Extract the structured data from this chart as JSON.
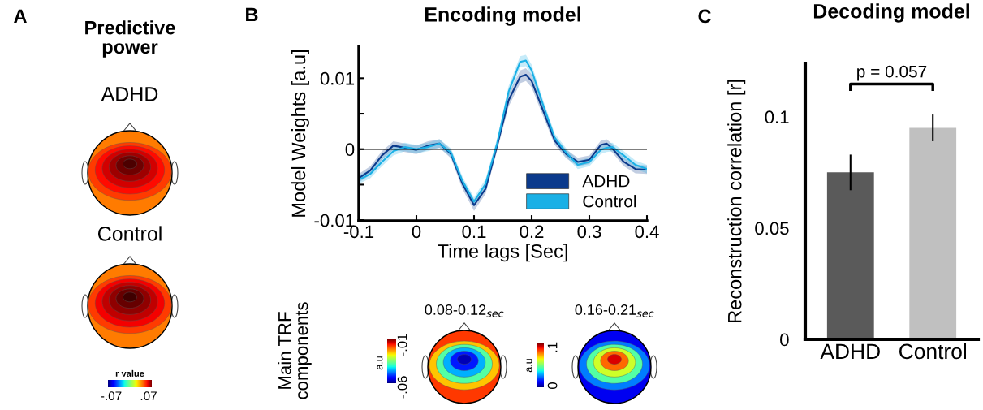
{
  "chart_data": [
    {
      "type": "other",
      "title": "Predictive\npower",
      "annotations": [
        "A",
        "ADHD",
        "Control",
        "r value",
        "-.07",
        ".07"
      ]
    },
    {
      "type": "line",
      "title": "Encoding model",
      "xlabel": "Time lags [Sec]",
      "ylabel": "Model Weights [a.u]",
      "annotations": [
        "B"
      ],
      "x": [
        -0.1,
        -0.08,
        -0.06,
        -0.04,
        -0.02,
        0,
        0.02,
        0.04,
        0.06,
        0.08,
        0.1,
        0.12,
        0.14,
        0.16,
        0.18,
        0.19,
        0.2,
        0.22,
        0.24,
        0.26,
        0.28,
        0.3,
        0.32,
        0.33,
        0.34,
        0.36,
        0.38,
        0.4
      ],
      "series": [
        {
          "name": "ADHD",
          "color": "#0b3a8c",
          "values": [
            -0.0041,
            -0.003,
            -0.0009,
            0.0005,
            0.0002,
            -0.0001,
            0.0005,
            0.0008,
            -0.0007,
            -0.0049,
            -0.0079,
            -0.0056,
            0.0005,
            0.0069,
            0.0102,
            0.0105,
            0.0096,
            0.0054,
            0.0012,
            -0.0007,
            -0.0018,
            -0.0015,
            0.0006,
            0.0008,
            0.0001,
            -0.0018,
            -0.0028,
            -0.0029
          ],
          "lower": [
            -0.0047,
            -0.0036,
            -0.0015,
            -0.0001,
            -0.0004,
            -0.0007,
            -0.0001,
            0.0002,
            -0.0013,
            -0.0056,
            -0.0087,
            -0.0063,
            -0.0002,
            0.006,
            0.0093,
            0.0096,
            0.0087,
            0.0046,
            0.0006,
            -0.0013,
            -0.0024,
            -0.0021,
            0.0,
            0.0002,
            -0.0005,
            -0.0024,
            -0.0034,
            -0.0035
          ],
          "upper": [
            -0.0035,
            -0.0024,
            -0.0003,
            0.0011,
            0.0008,
            0.0005,
            0.0011,
            0.0014,
            -0.0001,
            -0.0042,
            -0.0071,
            -0.0049,
            0.0012,
            0.0078,
            0.0111,
            0.0114,
            0.0105,
            0.0062,
            0.0018,
            -0.0001,
            -0.0012,
            -0.0009,
            0.0012,
            0.0014,
            0.0007,
            -0.0012,
            -0.0022,
            -0.0023
          ]
        },
        {
          "name": "Control",
          "color": "#1ab0e6",
          "values": [
            -0.0043,
            -0.0035,
            -0.0018,
            -0.0003,
            0.0003,
            0.0,
            0.0003,
            0.0008,
            -0.0005,
            -0.0045,
            -0.0074,
            -0.0049,
            0.0008,
            0.0081,
            0.0123,
            0.0125,
            0.0111,
            0.0062,
            0.0016,
            -0.0005,
            -0.0022,
            -0.0018,
            -0.0001,
            0.0002,
            0.0003,
            -0.0009,
            -0.0022,
            -0.0028
          ],
          "lower": [
            -0.0049,
            -0.0041,
            -0.0024,
            -0.0009,
            -0.0003,
            -0.0006,
            -0.0003,
            0.0002,
            -0.0011,
            -0.0051,
            -0.008,
            -0.0056,
            0.0001,
            0.0073,
            0.0115,
            0.0117,
            0.0103,
            0.0055,
            0.001,
            -0.0011,
            -0.0028,
            -0.0024,
            -0.0007,
            -0.0004,
            -0.0003,
            -0.0015,
            -0.0028,
            -0.0034
          ],
          "upper": [
            -0.0037,
            -0.0029,
            -0.0012,
            0.0003,
            0.0009,
            0.0006,
            0.0009,
            0.0014,
            0.0001,
            -0.0039,
            -0.0068,
            -0.0042,
            0.0015,
            0.0089,
            0.0131,
            0.0133,
            0.0119,
            0.0069,
            0.0022,
            0.0001,
            -0.0016,
            -0.0012,
            0.0005,
            0.0008,
            0.0009,
            -0.0003,
            -0.0016,
            -0.0022
          ]
        }
      ],
      "xlim": [
        -0.1,
        0.4
      ],
      "xticks": [
        -0.1,
        0,
        0.1,
        0.2,
        0.3,
        0.4
      ],
      "ylim": [
        -0.0101,
        0.0145
      ],
      "yticks": [
        {
          "value": -0.01,
          "label": "-0.01"
        },
        {
          "value": -0.005,
          "label": null
        },
        0,
        {
          "value": 0.005,
          "label": null
        },
        0.01
      ],
      "ref_lines": [
        {
          "axis": "y",
          "value": 0,
          "color": "#000000"
        }
      ],
      "legend": "bottom right",
      "grid": false
    },
    {
      "type": "other",
      "ylabel": "Main TRF\ncomponents",
      "annotations": [
        "0.08-0.12$_{sec}$",
        "0.16-0.21$_{sec}$",
        "a.u",
        "-.01",
        "-.06",
        "a.u",
        ".1",
        "0"
      ]
    },
    {
      "type": "bar",
      "title": "Decoding model",
      "ylabel": "Reconstruction correlation [r]",
      "annotations": [
        "C",
        "p = 0.057"
      ],
      "categories": [
        "ADHD",
        "Control"
      ],
      "values": [
        0.075,
        0.095
      ],
      "errors": [
        0.008,
        0.006
      ],
      "colors": [
        "#5a5a5a",
        "#c0c0c0"
      ],
      "ylim": [
        0,
        0.124
      ],
      "yticks": [
        0,
        0.05,
        0.1
      ],
      "grid": false
    }
  ]
}
